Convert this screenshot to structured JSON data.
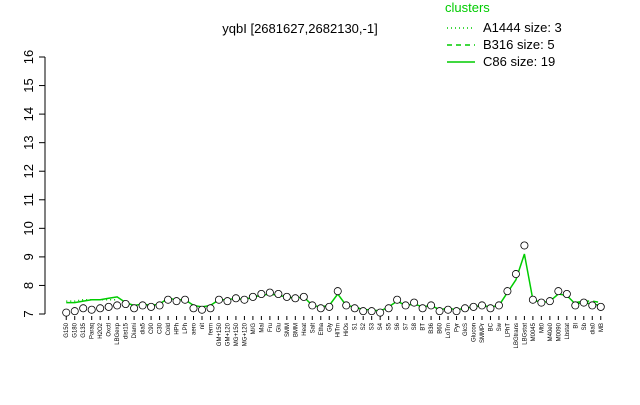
{
  "chart_data": {
    "type": "line",
    "title": "yqbI [2681627,2682130,-1]",
    "legend_title": "clusters",
    "legend": "top-right",
    "point_color": "#000000",
    "categories": [
      "G150",
      "G180",
      "G135",
      "Paraq",
      "H2O2",
      "Oxctl",
      "LBGexp",
      "dist15",
      "Diami",
      "dia5",
      "C90",
      "C30",
      "Cold",
      "HPh",
      "LPh",
      "aero",
      "nit",
      "ferm",
      "GM+150",
      "GM+120",
      "MG+150",
      "MG+120",
      "M/G",
      "Mal",
      "Fru",
      "Glu",
      "SMM",
      "BMM",
      "Heat",
      "Salt",
      "Etha",
      "Gly",
      "HiTm",
      "HiOs",
      "S1",
      "S2",
      "S3",
      "S4",
      "S5",
      "S6",
      "S7",
      "S8",
      "BT",
      "B36",
      "B60",
      "LoTm",
      "Pyr",
      "GlcS",
      "Glucon",
      "SMMPr",
      "BC",
      "Sw",
      "LPhT",
      "LBGtrans",
      "LBGstat",
      "M0045",
      "Mt0",
      "M40e0",
      "M0090",
      "Lbstat",
      "BI",
      "Sb",
      "dia0",
      "MB"
    ],
    "values": [
      7.05,
      7.1,
      7.2,
      7.15,
      7.2,
      7.25,
      7.3,
      7.35,
      7.2,
      7.3,
      7.25,
      7.3,
      7.5,
      7.45,
      7.5,
      7.2,
      7.15,
      7.2,
      7.5,
      7.45,
      7.55,
      7.5,
      7.6,
      7.7,
      7.75,
      7.7,
      7.6,
      7.55,
      7.6,
      7.3,
      7.2,
      7.25,
      7.8,
      7.3,
      7.2,
      7.1,
      7.1,
      7.05,
      7.2,
      7.5,
      7.3,
      7.4,
      7.2,
      7.3,
      7.1,
      7.15,
      7.1,
      7.2,
      7.25,
      7.3,
      7.2,
      7.3,
      7.8,
      8.4,
      9.4,
      7.5,
      7.4,
      7.45,
      7.8,
      7.7,
      7.3,
      7.4,
      7.3,
      7.25
    ],
    "series": [
      {
        "name": "A1444 size: 3",
        "color": "#00cc00",
        "dash": "dotted",
        "values": [
          7.45,
          7.45,
          7.5,
          7.5,
          7.5,
          7.5,
          7.5,
          null,
          null,
          null,
          null,
          null,
          null,
          null,
          null,
          null,
          null,
          null,
          null,
          null,
          null,
          null,
          null,
          null,
          null,
          null,
          null,
          null,
          null,
          null,
          null,
          null,
          null,
          null,
          null,
          null,
          null,
          null,
          null,
          null,
          null,
          null,
          null,
          null,
          null,
          null,
          null,
          null,
          null,
          null,
          null,
          null,
          null,
          null,
          null,
          null,
          null,
          null,
          null,
          null,
          null,
          null,
          null,
          null
        ]
      },
      {
        "name": "B316 size: 5",
        "color": "#00cc00",
        "dash": "dashed",
        "values": [
          null,
          null,
          null,
          null,
          null,
          null,
          null,
          null,
          null,
          null,
          null,
          null,
          null,
          null,
          null,
          null,
          null,
          null,
          null,
          null,
          null,
          null,
          null,
          null,
          null,
          null,
          null,
          null,
          null,
          null,
          null,
          null,
          null,
          null,
          null,
          null,
          null,
          null,
          null,
          null,
          null,
          null,
          null,
          null,
          null,
          null,
          null,
          null,
          null,
          null,
          null,
          null,
          null,
          null,
          null,
          null,
          null,
          null,
          null,
          null,
          7.4,
          7.45,
          7.45,
          7.4
        ]
      },
      {
        "name": "C86 size: 19",
        "color": "#00cc00",
        "dash": "solid",
        "values": [
          7.4,
          7.4,
          7.45,
          7.5,
          7.5,
          7.55,
          7.6,
          7.4,
          7.3,
          7.35,
          7.3,
          7.35,
          7.55,
          7.5,
          7.5,
          7.3,
          7.25,
          7.3,
          7.5,
          7.5,
          7.55,
          7.5,
          7.6,
          7.65,
          7.7,
          7.65,
          7.6,
          7.55,
          7.6,
          7.3,
          7.25,
          7.3,
          7.7,
          7.3,
          7.25,
          7.15,
          7.15,
          7.1,
          7.25,
          7.45,
          7.3,
          7.35,
          7.25,
          7.3,
          7.15,
          7.2,
          7.15,
          7.2,
          7.25,
          7.3,
          7.25,
          7.3,
          7.75,
          8.2,
          9.1,
          7.5,
          7.4,
          7.45,
          7.7,
          7.65,
          7.35,
          7.4,
          7.35,
          7.3
        ]
      }
    ],
    "ylim": [
      7,
      16
    ],
    "yticks": [
      7,
      8,
      9,
      10,
      11,
      12,
      13,
      14,
      15,
      16
    ]
  }
}
